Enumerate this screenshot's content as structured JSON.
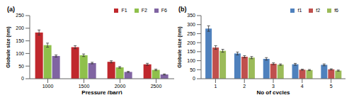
{
  "chart_data": [
    {
      "type": "bar",
      "title": "(a)",
      "x_label": "Pressure (barr)",
      "y_label": "Globule size (nm)",
      "categories": [
        "1000",
        "1500",
        "2000",
        "2500"
      ],
      "series": [
        {
          "name": "F1",
          "color": "#c0282d",
          "values": [
            183,
            125,
            67,
            57
          ],
          "errors": [
            10,
            6,
            4,
            4
          ]
        },
        {
          "name": "F2",
          "color": "#8fc04b",
          "values": [
            133,
            93,
            45,
            35
          ],
          "errors": [
            8,
            5,
            3,
            3
          ]
        },
        {
          "name": "F6",
          "color": "#8064a2",
          "values": [
            90,
            62,
            27,
            17
          ],
          "errors": [
            4,
            3,
            2,
            2
          ]
        }
      ],
      "ylim": [
        0,
        250
      ],
      "yticks": [
        0,
        50,
        100,
        150,
        200,
        250
      ],
      "grid": false,
      "legend": "top-right"
    },
    {
      "type": "bar",
      "title": "(b)",
      "x_label": "No of cycles",
      "y_label": "Globule size (nm)",
      "categories": [
        "1",
        "2",
        "3",
        "4",
        "5"
      ],
      "series": [
        {
          "name": "f1",
          "color": "#4f81bd",
          "values": [
            278,
            140,
            110,
            80,
            77
          ],
          "errors": [
            15,
            8,
            7,
            5,
            5
          ]
        },
        {
          "name": "f2",
          "color": "#c0504d",
          "values": [
            173,
            122,
            83,
            50,
            52
          ],
          "errors": [
            10,
            6,
            5,
            3,
            3
          ]
        },
        {
          "name": "f6",
          "color": "#9bbb59",
          "values": [
            155,
            117,
            78,
            48,
            45
          ],
          "errors": [
            8,
            6,
            4,
            3,
            3
          ]
        }
      ],
      "ylim": [
        0,
        350
      ],
      "yticks": [
        0,
        50,
        100,
        150,
        200,
        250,
        300,
        350
      ],
      "grid": false,
      "legend": "top-right"
    }
  ]
}
